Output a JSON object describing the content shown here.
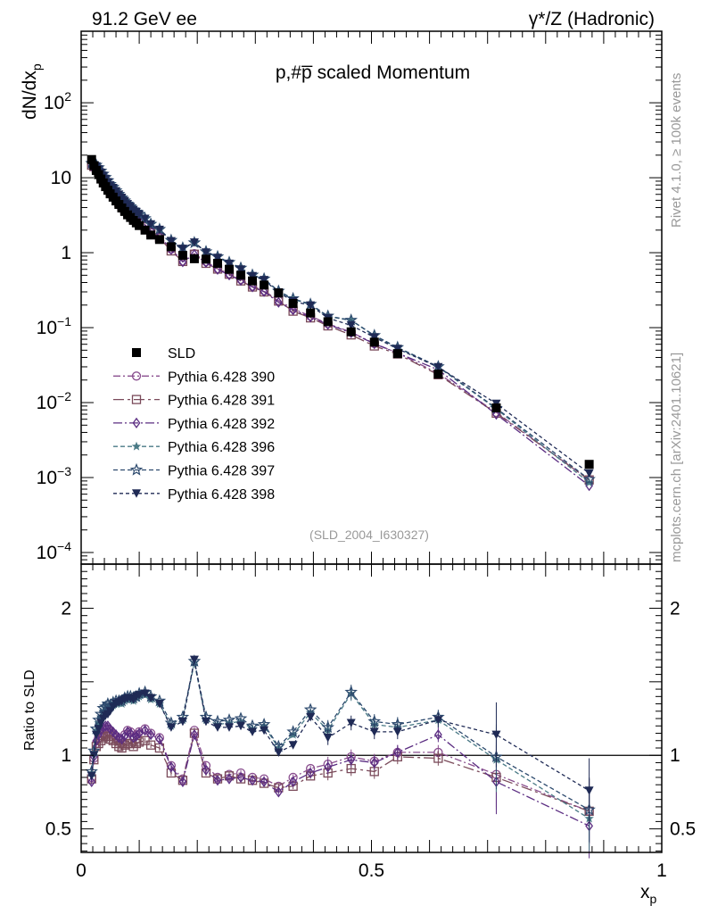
{
  "chart_data": {
    "type": "scatter",
    "header_left": "91.2 GeV ee",
    "header_right": "γ*/Z (Hadronic)",
    "title": "p,#p̅ scaled Momentum",
    "ylabel_main": "dN/dx",
    "ylabel_main_sub": "p",
    "ylabel_ratio": "Ratio to SLD",
    "xlabel": "x",
    "xlabel_sub": "p",
    "watermark": "(SLD_2004_I630327)",
    "side_label_top": "Rivet 4.1.0, ≥ 100k events",
    "side_label_bottom": "mcplots.cern.ch [arXiv:2401.10621]",
    "xlim": [
      0,
      1
    ],
    "ylim_main": [
      7e-05,
      900
    ],
    "ylim_ratio": [
      0.34,
      2.3
    ],
    "x_ticks": [
      {
        "value": 0,
        "label": "0"
      },
      {
        "value": 0.5,
        "label": "0.5"
      },
      {
        "value": 1,
        "label": "1"
      }
    ],
    "y_ticks_main": [
      {
        "value": 0.0001,
        "base": "10",
        "exp": "−4"
      },
      {
        "value": 0.001,
        "base": "10",
        "exp": "−3"
      },
      {
        "value": 0.01,
        "base": "10",
        "exp": "−2"
      },
      {
        "value": 0.1,
        "base": "10",
        "exp": "−1"
      },
      {
        "value": 1,
        "base": "1",
        "exp": ""
      },
      {
        "value": 10,
        "base": "10",
        "exp": ""
      },
      {
        "value": 100,
        "base": "10",
        "exp": "2"
      }
    ],
    "y_ticks_ratio": [
      {
        "value": 0.5,
        "label": "0.5"
      },
      {
        "value": 1,
        "label": "1"
      },
      {
        "value": 2,
        "label": "2"
      }
    ],
    "x": [
      0.018,
      0.022,
      0.026,
      0.03,
      0.034,
      0.038,
      0.042,
      0.046,
      0.05,
      0.055,
      0.06,
      0.065,
      0.07,
      0.075,
      0.08,
      0.085,
      0.09,
      0.095,
      0.1,
      0.11,
      0.12,
      0.135,
      0.155,
      0.175,
      0.195,
      0.215,
      0.235,
      0.255,
      0.275,
      0.295,
      0.315,
      0.34,
      0.365,
      0.395,
      0.425,
      0.465,
      0.505,
      0.545,
      0.615,
      0.715,
      0.875
    ],
    "data": {
      "name": "SLD",
      "color": "#000000",
      "values": [
        17.5,
        14.5,
        12.5,
        11.0,
        9.6,
        8.5,
        7.6,
        6.8,
        6.1,
        5.5,
        4.9,
        4.4,
        3.95,
        3.55,
        3.2,
        2.95,
        2.7,
        2.5,
        2.3,
        2.0,
        1.72,
        1.5,
        1.2,
        0.92,
        0.83,
        0.82,
        0.72,
        0.6,
        0.5,
        0.42,
        0.37,
        0.29,
        0.21,
        0.157,
        0.12,
        0.088,
        0.064,
        0.045,
        0.024,
        0.0085,
        0.0015
      ]
    },
    "series": [
      {
        "name": "Pythia 6.428 390",
        "marker": "circle-open",
        "dash": "8,3,2,3",
        "color": "#8a4f8f",
        "ratio": [
          0.85,
          0.98,
          1.08,
          1.12,
          1.15,
          1.17,
          1.18,
          1.18,
          1.16,
          1.14,
          1.12,
          1.1,
          1.1,
          1.14,
          1.17,
          1.16,
          1.12,
          1.14,
          1.16,
          1.18,
          1.15,
          1.12,
          0.93,
          0.84,
          1.17,
          0.93,
          0.85,
          0.87,
          0.88,
          0.85,
          0.84,
          0.79,
          0.85,
          0.91,
          0.94,
          0.99,
          0.96,
          1.02,
          1.02,
          0.87,
          0.62
        ]
      },
      {
        "name": "Pythia 6.428 391",
        "marker": "square-open",
        "dash": "12,4,3,4",
        "color": "#7a4a5a",
        "ratio": [
          0.84,
          0.97,
          1.06,
          1.08,
          1.1,
          1.12,
          1.13,
          1.13,
          1.11,
          1.1,
          1.08,
          1.06,
          1.05,
          1.07,
          1.08,
          1.08,
          1.06,
          1.08,
          1.09,
          1.1,
          1.07,
          1.05,
          0.88,
          0.83,
          1.15,
          0.88,
          0.84,
          0.86,
          0.84,
          0.83,
          0.81,
          0.78,
          0.79,
          0.86,
          0.88,
          0.91,
          0.89,
          0.99,
          0.98,
          0.85,
          0.62
        ]
      },
      {
        "name": "Pythia 6.428 392",
        "marker": "diamond-open",
        "dash": "10,3,2,3",
        "color": "#5b2d82",
        "ratio": [
          0.82,
          0.99,
          1.1,
          1.14,
          1.17,
          1.19,
          1.2,
          1.2,
          1.18,
          1.16,
          1.14,
          1.12,
          1.11,
          1.13,
          1.16,
          1.15,
          1.12,
          1.13,
          1.15,
          1.17,
          1.14,
          1.11,
          0.92,
          0.82,
          1.14,
          0.9,
          0.83,
          0.84,
          0.85,
          0.83,
          0.82,
          0.75,
          0.82,
          0.88,
          0.92,
          0.97,
          0.95,
          1.02,
          1.14,
          0.82,
          0.52
        ]
      },
      {
        "name": "Pythia 6.428 396",
        "marker": "star-filled",
        "dash": "5,3",
        "color": "#4a7a86",
        "ratio": [
          0.88,
          1.02,
          1.17,
          1.22,
          1.26,
          1.3,
          1.32,
          1.33,
          1.32,
          1.34,
          1.35,
          1.36,
          1.35,
          1.37,
          1.38,
          1.38,
          1.37,
          1.39,
          1.4,
          1.41,
          1.38,
          1.35,
          1.2,
          1.24,
          1.63,
          1.24,
          1.21,
          1.22,
          1.23,
          1.18,
          1.2,
          1.05,
          1.14,
          1.29,
          1.17,
          1.42,
          1.21,
          1.19,
          1.24,
          0.97,
          0.57
        ]
      },
      {
        "name": "Pythia 6.428 397",
        "marker": "star-open",
        "dash": "5,3",
        "color": "#2d4a6e",
        "ratio": [
          0.89,
          1.03,
          1.18,
          1.24,
          1.28,
          1.32,
          1.33,
          1.35,
          1.34,
          1.36,
          1.37,
          1.37,
          1.37,
          1.39,
          1.4,
          1.4,
          1.39,
          1.4,
          1.42,
          1.43,
          1.4,
          1.37,
          1.22,
          1.26,
          1.64,
          1.26,
          1.23,
          1.24,
          1.25,
          1.2,
          1.21,
          1.06,
          1.16,
          1.31,
          1.19,
          1.43,
          1.23,
          1.21,
          1.26,
          0.99,
          0.63
        ]
      },
      {
        "name": "Pythia 6.428 398",
        "marker": "triangle-down-filled",
        "dash": "4,3",
        "color": "#1f2a55",
        "ratio": [
          0.86,
          1.0,
          1.14,
          1.18,
          1.22,
          1.25,
          1.27,
          1.28,
          1.3,
          1.33,
          1.35,
          1.36,
          1.37,
          1.38,
          1.39,
          1.39,
          1.38,
          1.4,
          1.41,
          1.42,
          1.39,
          1.35,
          1.19,
          1.23,
          1.65,
          1.23,
          1.19,
          1.19,
          1.2,
          1.16,
          1.17,
          1.02,
          1.07,
          1.26,
          1.12,
          1.22,
          1.16,
          1.16,
          1.24,
          1.14,
          0.76
        ]
      }
    ]
  }
}
